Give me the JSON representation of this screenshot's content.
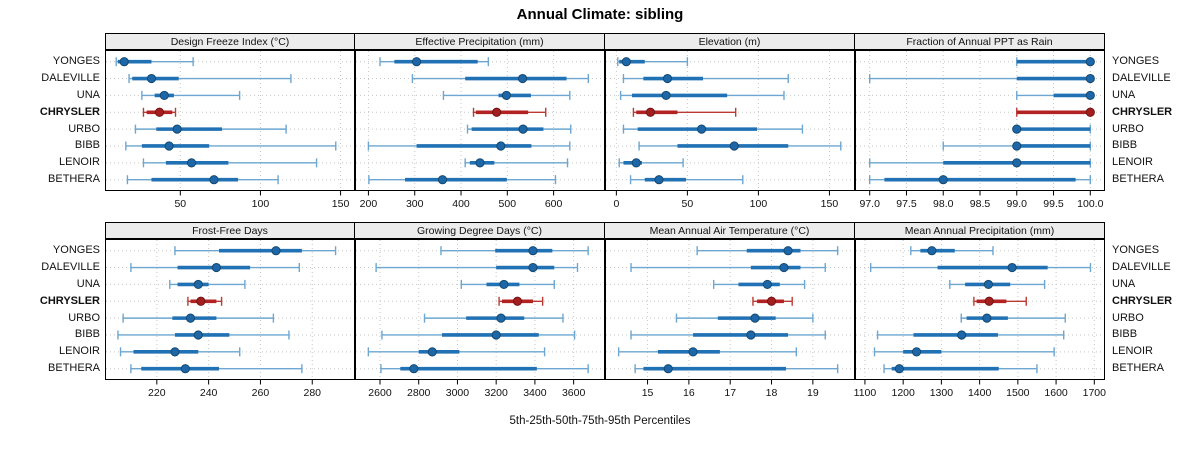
{
  "title": "Annual Climate: sibling",
  "xlabel": "5th-25th-50th-75th-95th Percentiles",
  "sites": [
    "YONGES",
    "DALEVILLE",
    "UNA",
    "CHRYSLER",
    "URBO",
    "BIBB",
    "LENOIR",
    "BETHERA"
  ],
  "highlight_site": "CHRYSLER",
  "colors": {
    "series_main": "#2171b5",
    "series_light": "#6ca6d1",
    "series_dot_fill": "#1d67a8",
    "series_dot_stroke": "#14486f",
    "highlight_main": "#b22222",
    "highlight_light": "#bb3b33",
    "highlight_dot_fill": "#a31f1f",
    "highlight_dot_stroke": "#701313",
    "strip_bg": "#ececec",
    "grid": "#c6c6c6",
    "panel_border": "#000000",
    "tick_label": "#111111"
  },
  "chart_data": {
    "type": "dotplot-percentiles",
    "percentile_levels": [
      5,
      25,
      50,
      75,
      95
    ],
    "layout": "2 rows x 4 columns, shared site axis",
    "panels": [
      {
        "title": "Design Freeze Index (°C)",
        "ticks": [
          50,
          100,
          150
        ],
        "tick_labels": [
          "50",
          "100",
          "150"
        ],
        "xlim": [
          3,
          159
        ],
        "values": {
          "YONGES": [
            10,
            11,
            15,
            32,
            58
          ],
          "DALEVILLE": [
            18,
            20,
            32,
            49,
            119
          ],
          "UNA": [
            26,
            34,
            40,
            46,
            87
          ],
          "CHRYSLER": [
            27,
            29,
            37,
            45,
            47
          ],
          "URBO": [
            22,
            35,
            48,
            76,
            116
          ],
          "BIBB": [
            16,
            26,
            43,
            68,
            147
          ],
          "LENOIR": [
            27,
            41,
            57,
            80,
            135
          ],
          "BETHERA": [
            17,
            32,
            71,
            86,
            111
          ]
        }
      },
      {
        "title": "Effective Precipitation (mm)",
        "ticks": [
          200,
          300,
          400,
          500,
          600
        ],
        "tick_labels": [
          "200",
          "300",
          "400",
          "500",
          "600"
        ],
        "xlim": [
          171,
          711
        ],
        "values": {
          "YONGES": [
            225,
            256,
            304,
            436,
            459
          ],
          "DALEVILLE": [
            295,
            409,
            533,
            628,
            675
          ],
          "UNA": [
            362,
            481,
            498,
            551,
            635
          ],
          "CHRYSLER": [
            427,
            432,
            477,
            545,
            583
          ],
          "URBO": [
            414,
            423,
            534,
            578,
            637
          ],
          "BIBB": [
            200,
            304,
            486,
            552,
            635
          ],
          "LENOIR": [
            409,
            419,
            441,
            472,
            630
          ],
          "BETHERA": [
            201,
            279,
            360,
            499,
            604
          ]
        }
      },
      {
        "title": "Elevation (m)",
        "ticks": [
          0,
          50,
          100,
          150
        ],
        "tick_labels": [
          "0",
          "50",
          "100",
          "150"
        ],
        "xlim": [
          -8,
          168
        ],
        "values": {
          "YONGES": [
            1,
            2,
            7,
            20,
            50
          ],
          "DALEVILLE": [
            5,
            19,
            36,
            61,
            121
          ],
          "UNA": [
            3,
            11,
            35,
            78,
            118
          ],
          "CHRYSLER": [
            12,
            14,
            24,
            43,
            84
          ],
          "URBO": [
            5,
            15,
            60,
            99,
            131
          ],
          "BIBB": [
            16,
            43,
            83,
            121,
            158
          ],
          "LENOIR": [
            2,
            5,
            14,
            18,
            47
          ],
          "BETHERA": [
            10,
            20,
            30,
            49,
            89
          ]
        }
      },
      {
        "title": "Fraction of Annual PPT as Rain",
        "ticks": [
          97,
          97.5,
          98,
          98.5,
          99,
          99.5,
          100
        ],
        "tick_labels": [
          "97.0",
          "97.5",
          "98.0",
          "98.5",
          "99.0",
          "99.5",
          "100.0"
        ],
        "xlim": [
          96.8,
          100.2
        ],
        "values": {
          "YONGES": [
            99,
            99,
            100,
            100,
            100
          ],
          "DALEVILLE": [
            97,
            99,
            100,
            100,
            100
          ],
          "UNA": [
            99,
            99.5,
            100,
            100,
            100
          ],
          "CHRYSLER": [
            99,
            99,
            100,
            100,
            100
          ],
          "URBO": [
            99,
            99,
            99,
            100,
            100
          ],
          "BIBB": [
            98,
            99,
            99,
            100,
            100
          ],
          "LENOIR": [
            97,
            98,
            99,
            100,
            100
          ],
          "BETHERA": [
            97,
            97.2,
            98,
            99.8,
            100
          ]
        }
      },
      {
        "title": "Frost-Free Days",
        "ticks": [
          220,
          240,
          260,
          280
        ],
        "tick_labels": [
          "220",
          "240",
          "260",
          "280"
        ],
        "xlim": [
          200,
          296.5
        ],
        "values": {
          "YONGES": [
            227,
            244,
            266,
            276,
            289
          ],
          "DALEVILLE": [
            210,
            228,
            243,
            256,
            275
          ],
          "UNA": [
            225,
            228,
            236,
            240,
            254
          ],
          "CHRYSLER": [
            232,
            233,
            237,
            243,
            245
          ],
          "URBO": [
            207,
            226,
            233,
            243,
            265
          ],
          "BIBB": [
            205,
            227,
            236,
            248,
            271
          ],
          "LENOIR": [
            206,
            211,
            227,
            236,
            252
          ],
          "BETHERA": [
            210,
            214,
            231,
            244,
            276
          ]
        }
      },
      {
        "title": "Growing Degree Days (°C)",
        "ticks": [
          2600,
          2800,
          3000,
          3200,
          3400,
          3600
        ],
        "tick_labels": [
          "2600",
          "2800",
          "3000",
          "3200",
          "3400",
          "3600"
        ],
        "xlim": [
          2471,
          3762
        ],
        "values": {
          "YONGES": [
            2915,
            3195,
            3390,
            3490,
            3675
          ],
          "DALEVILLE": [
            2580,
            3200,
            3390,
            3500,
            3620
          ],
          "UNA": [
            3020,
            3150,
            3240,
            3320,
            3500
          ],
          "CHRYSLER": [
            3215,
            3230,
            3310,
            3390,
            3440
          ],
          "URBO": [
            2830,
            3045,
            3225,
            3345,
            3545
          ],
          "BIBB": [
            2610,
            2920,
            3200,
            3420,
            3605
          ],
          "LENOIR": [
            2540,
            2800,
            2870,
            3010,
            3450
          ],
          "BETHERA": [
            2605,
            2705,
            2775,
            3410,
            3675
          ]
        }
      },
      {
        "title": "Mean Annual Air Temperature (°C)",
        "ticks": [
          15,
          16,
          17,
          18,
          19
        ],
        "tick_labels": [
          "15",
          "16",
          "17",
          "18",
          "19"
        ],
        "xlim": [
          13.97,
          20.02
        ],
        "values": {
          "YONGES": [
            16.2,
            17.4,
            18.4,
            18.7,
            19.6
          ],
          "DALEVILLE": [
            14.6,
            17.5,
            18.3,
            18.7,
            19.3
          ],
          "UNA": [
            16.6,
            17.2,
            17.9,
            18.2,
            18.8
          ],
          "CHRYSLER": [
            17.55,
            17.65,
            18.0,
            18.3,
            18.5
          ],
          "URBO": [
            15.7,
            16.7,
            17.6,
            18.1,
            19.0
          ],
          "BIBB": [
            14.6,
            16.1,
            17.5,
            18.4,
            19.3
          ],
          "LENOIR": [
            14.3,
            15.25,
            16.1,
            16.75,
            18.6
          ],
          "BETHERA": [
            14.7,
            14.9,
            15.5,
            18.35,
            19.6
          ]
        }
      },
      {
        "title": "Mean Annual Precipitation (mm)",
        "ticks": [
          1100,
          1200,
          1300,
          1400,
          1500,
          1600,
          1700
        ],
        "tick_labels": [
          "1100",
          "1200",
          "1300",
          "1400",
          "1500",
          "1600",
          "1700"
        ],
        "xlim": [
          1074,
          1728
        ],
        "values": {
          "YONGES": [
            1220,
            1245,
            1275,
            1335,
            1435
          ],
          "DALEVILLE": [
            1115,
            1290,
            1485,
            1578,
            1690
          ],
          "UNA": [
            1322,
            1362,
            1423,
            1480,
            1570
          ],
          "CHRYSLER": [
            1385,
            1392,
            1425,
            1470,
            1522
          ],
          "URBO": [
            1352,
            1366,
            1419,
            1474,
            1624
          ],
          "BIBB": [
            1133,
            1227,
            1353,
            1448,
            1620
          ],
          "LENOIR": [
            1125,
            1200,
            1235,
            1300,
            1595
          ],
          "BETHERA": [
            1150,
            1170,
            1190,
            1450,
            1550
          ]
        }
      }
    ]
  }
}
